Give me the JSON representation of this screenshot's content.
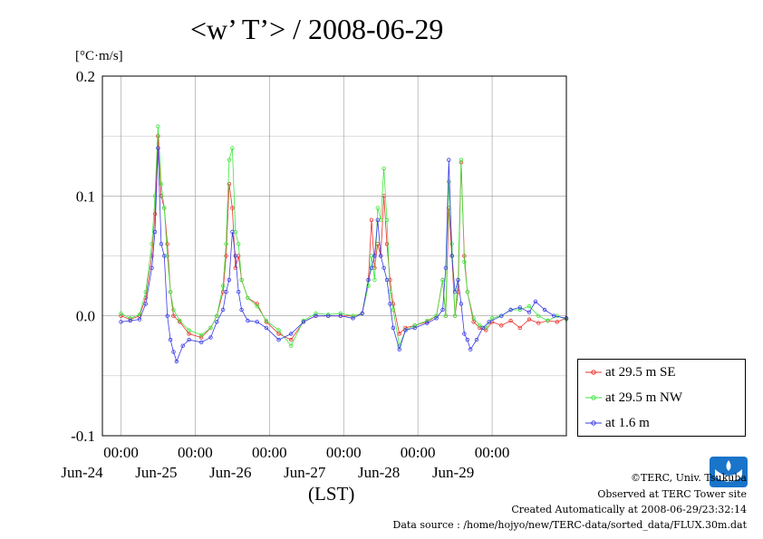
{
  "chart_data": {
    "type": "line",
    "title": "<w’ T’> / 2008-06-29",
    "units": "[°C·m/s]",
    "xlabel": "(LST)",
    "ylim": [
      -0.1,
      0.2
    ],
    "xlim": [
      "2008-06-23 00:00",
      "2008-06-29 00:00"
    ],
    "yticks": [
      "-0.1",
      "0.0",
      "0.1",
      "0.2"
    ],
    "xticks": [
      {
        "time": "00:00",
        "day": "Jun-24"
      },
      {
        "time": "00:00",
        "day": "Jun-25"
      },
      {
        "time": "00:00",
        "day": "Jun-26"
      },
      {
        "time": "00:00",
        "day": "Jun-27"
      },
      {
        "time": "00:00",
        "day": "Jun-28"
      },
      {
        "time": "00:00",
        "day": "Jun-29"
      }
    ],
    "grid": true,
    "legend_position": "right",
    "series": [
      {
        "name": "at 29.5 m SE",
        "color": "#e8312a",
        "points": [
          [
            "06-23 00:00",
            0.0
          ],
          [
            "06-23 03:00",
            -0.003
          ],
          [
            "06-23 06:00",
            0.0
          ],
          [
            "06-23 08:00",
            0.015
          ],
          [
            "06-23 10:00",
            0.05
          ],
          [
            "06-23 11:00",
            0.085
          ],
          [
            "06-23 12:00",
            0.15
          ],
          [
            "06-23 13:00",
            0.1
          ],
          [
            "06-23 14:00",
            0.09
          ],
          [
            "06-23 15:00",
            0.06
          ],
          [
            "06-23 16:00",
            0.02
          ],
          [
            "06-23 17:00",
            0.0
          ],
          [
            "06-23 19:00",
            -0.005
          ],
          [
            "06-23 22:00",
            -0.015
          ],
          [
            "06-24 02:00",
            -0.018
          ],
          [
            "06-24 05:00",
            -0.01
          ],
          [
            "06-24 07:00",
            0.0
          ],
          [
            "06-24 09:00",
            0.02
          ],
          [
            "06-24 10:00",
            0.05
          ],
          [
            "06-24 11:00",
            0.11
          ],
          [
            "06-24 12:00",
            0.09
          ],
          [
            "06-24 13:00",
            0.04
          ],
          [
            "06-24 14:00",
            0.05
          ],
          [
            "06-24 15:00",
            0.03
          ],
          [
            "06-24 17:00",
            0.015
          ],
          [
            "06-24 20:00",
            0.01
          ],
          [
            "06-24 23:00",
            -0.005
          ],
          [
            "06-25 03:00",
            -0.015
          ],
          [
            "06-25 07:00",
            -0.02
          ],
          [
            "06-25 11:00",
            -0.005
          ],
          [
            "06-25 15:00",
            0.0
          ],
          [
            "06-25 19:00",
            0.0
          ],
          [
            "06-25 23:00",
            0.0
          ],
          [
            "06-26 03:00",
            0.0
          ],
          [
            "06-26 06:00",
            0.002
          ],
          [
            "06-26 08:00",
            0.03
          ],
          [
            "06-26 09:00",
            0.08
          ],
          [
            "06-26 10:00",
            0.04
          ],
          [
            "06-26 11:00",
            0.06
          ],
          [
            "06-26 12:00",
            0.05
          ],
          [
            "06-26 13:00",
            0.1
          ],
          [
            "06-26 14:00",
            0.06
          ],
          [
            "06-26 15:00",
            0.03
          ],
          [
            "06-26 16:00",
            0.01
          ],
          [
            "06-26 18:00",
            -0.015
          ],
          [
            "06-26 20:00",
            -0.01
          ],
          [
            "06-26 23:00",
            -0.008
          ],
          [
            "06-27 03:00",
            -0.005
          ],
          [
            "06-27 06:00",
            0.0
          ],
          [
            "06-27 08:00",
            0.03
          ],
          [
            "06-27 09:00",
            0.0
          ],
          [
            "06-27 10:00",
            0.09
          ],
          [
            "06-27 11:00",
            0.05
          ],
          [
            "06-27 12:00",
            0.0
          ],
          [
            "06-27 13:00",
            0.02
          ],
          [
            "06-27 14:00",
            0.128
          ],
          [
            "06-27 15:00",
            0.05
          ],
          [
            "06-27 16:00",
            0.02
          ],
          [
            "06-27 18:00",
            -0.005
          ],
          [
            "06-27 20:00",
            -0.01
          ],
          [
            "06-27 22:00",
            -0.012
          ],
          [
            "06-28 00:00",
            -0.005
          ],
          [
            "06-28 03:00",
            -0.008
          ],
          [
            "06-28 06:00",
            -0.004
          ],
          [
            "06-28 09:00",
            -0.01
          ],
          [
            "06-28 12:00",
            -0.003
          ],
          [
            "06-28 15:00",
            -0.006
          ],
          [
            "06-28 18:00",
            -0.004
          ],
          [
            "06-28 21:00",
            -0.005
          ],
          [
            "06-29 00:00",
            -0.002
          ]
        ]
      },
      {
        "name": "at 29.5 m NW",
        "color": "#3ee63e",
        "points": [
          [
            "06-23 00:00",
            0.002
          ],
          [
            "06-23 03:00",
            -0.002
          ],
          [
            "06-23 06:00",
            0.001
          ],
          [
            "06-23 08:00",
            0.02
          ],
          [
            "06-23 10:00",
            0.06
          ],
          [
            "06-23 11:00",
            0.1
          ],
          [
            "06-23 12:00",
            0.158
          ],
          [
            "06-23 13:00",
            0.11
          ],
          [
            "06-23 14:00",
            0.09
          ],
          [
            "06-23 15:00",
            0.05
          ],
          [
            "06-23 16:00",
            0.02
          ],
          [
            "06-23 17:00",
            0.005
          ],
          [
            "06-23 19:00",
            -0.004
          ],
          [
            "06-23 22:00",
            -0.012
          ],
          [
            "06-24 02:00",
            -0.016
          ],
          [
            "06-24 05:00",
            -0.01
          ],
          [
            "06-24 07:00",
            0.0
          ],
          [
            "06-24 09:00",
            0.025
          ],
          [
            "06-24 10:00",
            0.06
          ],
          [
            "06-24 11:00",
            0.13
          ],
          [
            "06-24 12:00",
            0.14
          ],
          [
            "06-24 13:00",
            0.07
          ],
          [
            "06-24 14:00",
            0.06
          ],
          [
            "06-24 15:00",
            0.03
          ],
          [
            "06-24 17:00",
            0.015
          ],
          [
            "06-24 20:00",
            0.008
          ],
          [
            "06-24 23:00",
            -0.004
          ],
          [
            "06-25 03:00",
            -0.012
          ],
          [
            "06-25 07:00",
            -0.025
          ],
          [
            "06-25 11:00",
            -0.004
          ],
          [
            "06-25 15:00",
            0.002
          ],
          [
            "06-25 19:00",
            0.001
          ],
          [
            "06-25 23:00",
            0.002
          ],
          [
            "06-26 03:00",
            0.0
          ],
          [
            "06-26 06:00",
            0.002
          ],
          [
            "06-26 08:00",
            0.025
          ],
          [
            "06-26 09:00",
            0.05
          ],
          [
            "06-26 10:00",
            0.03
          ],
          [
            "06-26 11:00",
            0.09
          ],
          [
            "06-26 12:00",
            0.08
          ],
          [
            "06-26 13:00",
            0.123
          ],
          [
            "06-26 14:00",
            0.08
          ],
          [
            "06-26 15:00",
            0.02
          ],
          [
            "06-26 16:00",
            0.005
          ],
          [
            "06-26 18:00",
            -0.025
          ],
          [
            "06-26 20:00",
            -0.012
          ],
          [
            "06-26 23:00",
            -0.008
          ],
          [
            "06-27 03:00",
            -0.004
          ],
          [
            "06-27 06:00",
            0.0
          ],
          [
            "06-27 08:00",
            0.03
          ],
          [
            "06-27 09:00",
            0.0
          ],
          [
            "06-27 10:00",
            0.112
          ],
          [
            "06-27 11:00",
            0.06
          ],
          [
            "06-27 12:00",
            0.0
          ],
          [
            "06-27 13:00",
            0.03
          ],
          [
            "06-27 14:00",
            0.13
          ],
          [
            "06-27 15:00",
            0.045
          ],
          [
            "06-27 16:00",
            0.02
          ],
          [
            "06-27 18:00",
            -0.002
          ],
          [
            "06-27 20:00",
            -0.008
          ],
          [
            "06-27 22:00",
            -0.01
          ],
          [
            "06-28 00:00",
            -0.002
          ],
          [
            "06-28 03:00",
            0.0
          ],
          [
            "06-28 06:00",
            0.005
          ],
          [
            "06-28 09:00",
            0.005
          ],
          [
            "06-28 12:00",
            0.008
          ],
          [
            "06-28 15:00",
            0.0
          ],
          [
            "06-28 18:00",
            -0.004
          ],
          [
            "06-28 21:00",
            0.0
          ],
          [
            "06-29 00:00",
            -0.003
          ]
        ]
      },
      {
        "name": "at 1.6 m",
        "color": "#3a3ae8",
        "points": [
          [
            "06-23 00:00",
            -0.005
          ],
          [
            "06-23 03:00",
            -0.004
          ],
          [
            "06-23 06:00",
            -0.003
          ],
          [
            "06-23 08:00",
            0.01
          ],
          [
            "06-23 10:00",
            0.04
          ],
          [
            "06-23 11:00",
            0.07
          ],
          [
            "06-23 12:00",
            0.14
          ],
          [
            "06-23 13:00",
            0.06
          ],
          [
            "06-23 14:00",
            0.05
          ],
          [
            "06-23 15:00",
            0.0
          ],
          [
            "06-23 16:00",
            -0.02
          ],
          [
            "06-23 17:00",
            -0.03
          ],
          [
            "06-23 18:00",
            -0.038
          ],
          [
            "06-23 20:00",
            -0.025
          ],
          [
            "06-23 22:00",
            -0.02
          ],
          [
            "06-24 02:00",
            -0.022
          ],
          [
            "06-24 05:00",
            -0.018
          ],
          [
            "06-24 07:00",
            -0.005
          ],
          [
            "06-24 09:00",
            0.005
          ],
          [
            "06-24 10:00",
            0.02
          ],
          [
            "06-24 11:00",
            0.03
          ],
          [
            "06-24 12:00",
            0.07
          ],
          [
            "06-24 13:00",
            0.05
          ],
          [
            "06-24 14:00",
            0.02
          ],
          [
            "06-24 15:00",
            0.005
          ],
          [
            "06-24 17:00",
            -0.004
          ],
          [
            "06-24 20:00",
            -0.005
          ],
          [
            "06-24 23:00",
            -0.01
          ],
          [
            "06-25 03:00",
            -0.02
          ],
          [
            "06-25 07:00",
            -0.015
          ],
          [
            "06-25 11:00",
            -0.005
          ],
          [
            "06-25 15:00",
            0.0
          ],
          [
            "06-25 19:00",
            0.0
          ],
          [
            "06-25 23:00",
            0.0
          ],
          [
            "06-26 03:00",
            -0.002
          ],
          [
            "06-26 06:00",
            0.002
          ],
          [
            "06-26 08:00",
            0.03
          ],
          [
            "06-26 09:00",
            0.04
          ],
          [
            "06-26 10:00",
            0.05
          ],
          [
            "06-26 11:00",
            0.08
          ],
          [
            "06-26 12:00",
            0.05
          ],
          [
            "06-26 13:00",
            0.04
          ],
          [
            "06-26 14:00",
            0.03
          ],
          [
            "06-26 15:00",
            0.01
          ],
          [
            "06-26 16:00",
            -0.01
          ],
          [
            "06-26 18:00",
            -0.028
          ],
          [
            "06-26 20:00",
            -0.012
          ],
          [
            "06-26 23:00",
            -0.01
          ],
          [
            "06-27 03:00",
            -0.006
          ],
          [
            "06-27 06:00",
            -0.002
          ],
          [
            "06-27 08:00",
            0.005
          ],
          [
            "06-27 09:00",
            0.04
          ],
          [
            "06-27 10:00",
            0.13
          ],
          [
            "06-27 11:00",
            0.05
          ],
          [
            "06-27 12:00",
            0.02
          ],
          [
            "06-27 13:00",
            0.03
          ],
          [
            "06-27 14:00",
            0.01
          ],
          [
            "06-27 15:00",
            -0.015
          ],
          [
            "06-27 16:00",
            -0.02
          ],
          [
            "06-27 17:00",
            -0.028
          ],
          [
            "06-27 19:00",
            -0.02
          ],
          [
            "06-27 21:00",
            -0.01
          ],
          [
            "06-27 23:00",
            -0.005
          ],
          [
            "06-28 03:00",
            0.0
          ],
          [
            "06-28 06:00",
            0.005
          ],
          [
            "06-28 09:00",
            0.007
          ],
          [
            "06-28 12:00",
            0.003
          ],
          [
            "06-28 14:00",
            0.012
          ],
          [
            "06-28 17:00",
            0.005
          ],
          [
            "06-28 20:00",
            0.0
          ],
          [
            "06-29 00:00",
            -0.002
          ]
        ]
      }
    ]
  },
  "footer": {
    "copyright": "©TERC, Univ. Tsukuba",
    "observed": "Observed at TERC Tower site",
    "created": "Created Automatically at 2008-06-29/23:32:14",
    "source": "Data source : /home/hojyo/new/TERC-data/sorted_data/FLUX.30m.dat",
    "logo_text": "TERC"
  }
}
